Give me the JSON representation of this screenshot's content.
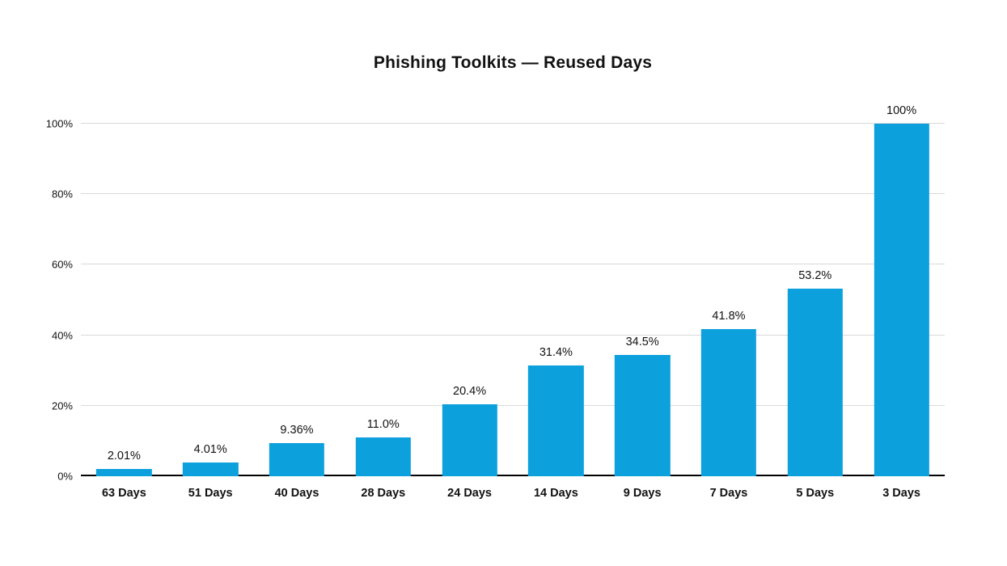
{
  "page": {
    "background": "#ffffff"
  },
  "chart_data": {
    "type": "bar",
    "title": "Phishing Toolkits — Reused Days",
    "categories": [
      "63 Days",
      "51 Days",
      "40 Days",
      "28 Days",
      "24 Days",
      "14 Days",
      "9 Days",
      "7 Days",
      "5 Days",
      "3 Days"
    ],
    "values": [
      2.01,
      4.01,
      9.36,
      11.0,
      20.4,
      31.4,
      34.5,
      41.8,
      53.2,
      100
    ],
    "value_labels": [
      "2.01%",
      "4.01%",
      "9.36%",
      "11.0%",
      "20.4%",
      "31.4%",
      "34.5%",
      "41.8%",
      "53.2%",
      "100%"
    ],
    "xlabel": "",
    "ylabel": "",
    "ylim": [
      0,
      100
    ],
    "ytick_values": [
      0,
      20,
      40,
      60,
      80,
      100
    ],
    "ytick_labels": [
      "0%",
      "20%",
      "40%",
      "60%",
      "80%",
      "100%"
    ],
    "grid": true,
    "legend": "none",
    "colors": {
      "bar": "#0CA0DC",
      "gridline": "#d9d9d9",
      "axis": "#000000",
      "text": "#111111",
      "background": "#ffffff"
    }
  }
}
